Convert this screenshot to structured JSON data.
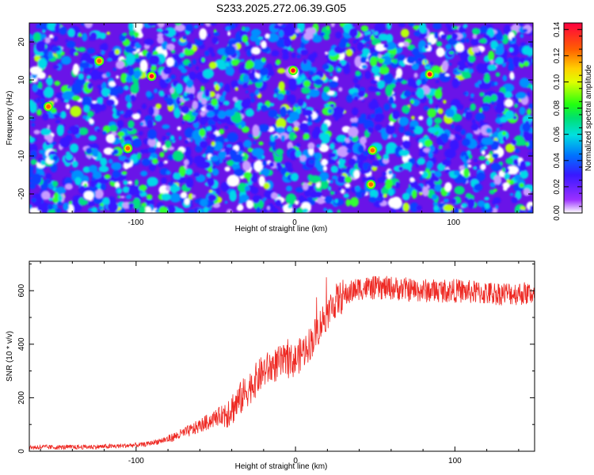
{
  "title": "S233.2025.272.06.39.G05",
  "chart_data": [
    {
      "type": "heatmap",
      "title": "S233.2025.272.06.39.G05",
      "xlabel": "Height of straight line (km)",
      "ylabel": "Frequency (Hz)",
      "xlim": [
        -167,
        150
      ],
      "ylim": [
        -25,
        25
      ],
      "xticks": [
        -100,
        0,
        100
      ],
      "yticks": [
        -20,
        -10,
        0,
        10,
        20
      ],
      "colorbar": {
        "label": "Normalized spectral amplitude",
        "range": [
          0,
          0.145
        ],
        "ticks": [
          0.0,
          0.02,
          0.04,
          0.06,
          0.08,
          0.1,
          0.12,
          0.14
        ],
        "tick_labels": [
          "0.00",
          "0.02",
          "0.04",
          "0.06",
          "0.08",
          "0.10",
          "0.12",
          "0.14"
        ]
      },
      "hotspots": [
        {
          "x": -90,
          "y": 11,
          "v": 0.14
        },
        {
          "x": -1,
          "y": 12.5,
          "v": 0.14
        },
        {
          "x": 85,
          "y": 11.5,
          "v": 0.14
        },
        {
          "x": 49,
          "y": -8.5,
          "v": 0.13
        },
        {
          "x": -123,
          "y": 15,
          "v": 0.12
        },
        {
          "x": 48,
          "y": -17.5,
          "v": 0.12
        },
        {
          "x": -155,
          "y": 3,
          "v": 0.11
        },
        {
          "x": -105,
          "y": -8,
          "v": 0.1
        }
      ]
    },
    {
      "type": "line",
      "xlabel": "Height of straight line (km)",
      "ylabel": "SNR (10 * v/v)",
      "xlim": [
        -167,
        150
      ],
      "ylim": [
        0,
        710
      ],
      "xticks": [
        -100,
        0,
        100
      ],
      "yticks": [
        0,
        200,
        400,
        600
      ],
      "color": "#ee2a24",
      "series": [
        {
          "name": "SNR",
          "x": [
            -167,
            -140,
            -115,
            -95,
            -80,
            -65,
            -55,
            -45,
            -38,
            -30,
            -20,
            -10,
            0,
            10,
            18,
            25,
            30,
            40,
            60,
            80,
            100,
            120,
            150
          ],
          "y": [
            15,
            15,
            18,
            25,
            45,
            80,
            110,
            140,
            170,
            230,
            300,
            330,
            340,
            410,
            500,
            560,
            580,
            610,
            610,
            600,
            600,
            590,
            590
          ]
        }
      ]
    }
  ]
}
